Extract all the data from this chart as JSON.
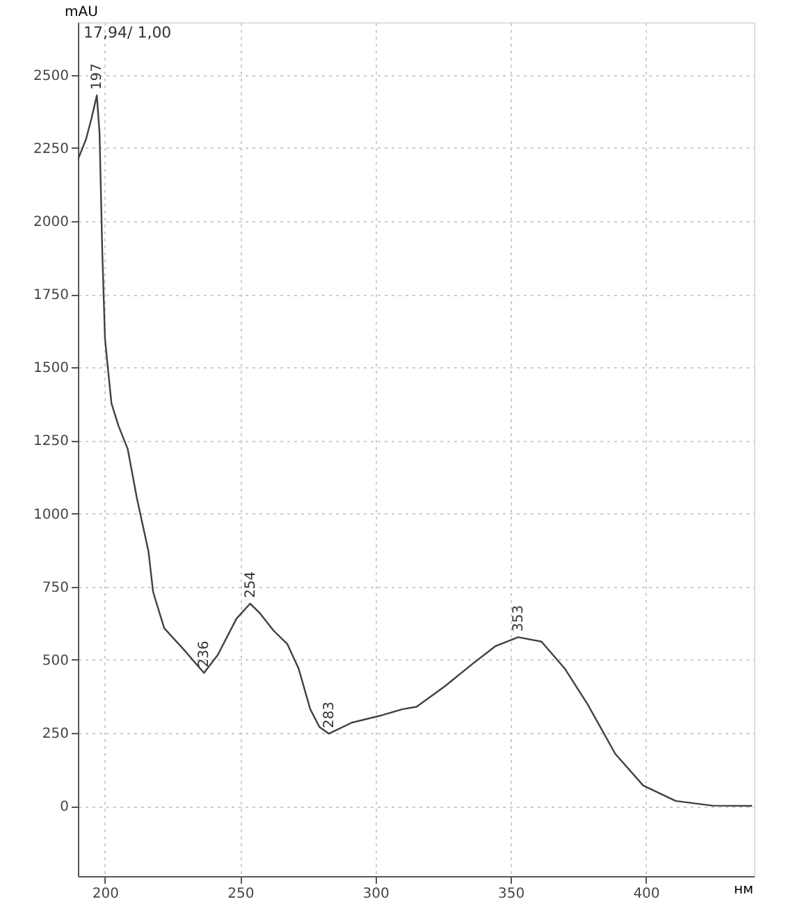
{
  "chart_data": {
    "type": "line",
    "xlabel": "нм",
    "ylabel": "mAU",
    "xlim": [
      190,
      440
    ],
    "ylim": [
      -240,
      2680
    ],
    "xticks": [
      200,
      250,
      300,
      350,
      400
    ],
    "yticks": [
      0,
      250,
      500,
      750,
      1000,
      1250,
      1500,
      1750,
      2000,
      2250,
      2500
    ],
    "grid": true,
    "marker": "none",
    "line_style": "solid",
    "series": [
      {
        "color": "#404040",
        "x": [
          190,
          193,
          195,
          197,
          198,
          199,
          200,
          201,
          202.4,
          205,
          208.4,
          211.8,
          216.1,
          217.8,
          221.9,
          229.6,
          236.6,
          241.7,
          248.6,
          253.7,
          257.1,
          262.3,
          267.4,
          271.6,
          275.9,
          279.3,
          282.8,
          291.3,
          301.5,
          310.1,
          315.2,
          325.5,
          335.8,
          344.3,
          352.8,
          361.4,
          370,
          378.5,
          388.7,
          399,
          411,
          424.6,
          439.3
        ],
        "values": [
          2210,
          2280,
          2350,
          2430,
          2300,
          1900,
          1600,
          1505,
          1377,
          1300,
          1221,
          1053,
          870,
          732,
          608,
          530,
          455,
          516,
          640,
          692,
          661,
          600,
          554,
          470,
          331,
          270,
          247,
          285,
          308,
          331,
          339,
          408,
          485,
          546,
          577,
          562,
          470,
          347,
          178,
          70,
          17,
          1,
          0
        ]
      }
    ],
    "annotations": [
      "17,94/ 1,00",
      {
        "text": "197",
        "x": 197,
        "y": 2430
      },
      {
        "text": "236",
        "x": 236.6,
        "y": 455
      },
      {
        "text": "254",
        "x": 253.7,
        "y": 692
      },
      {
        "text": "283",
        "x": 282.8,
        "y": 247
      },
      {
        "text": "353",
        "x": 352.8,
        "y": 577
      }
    ]
  }
}
